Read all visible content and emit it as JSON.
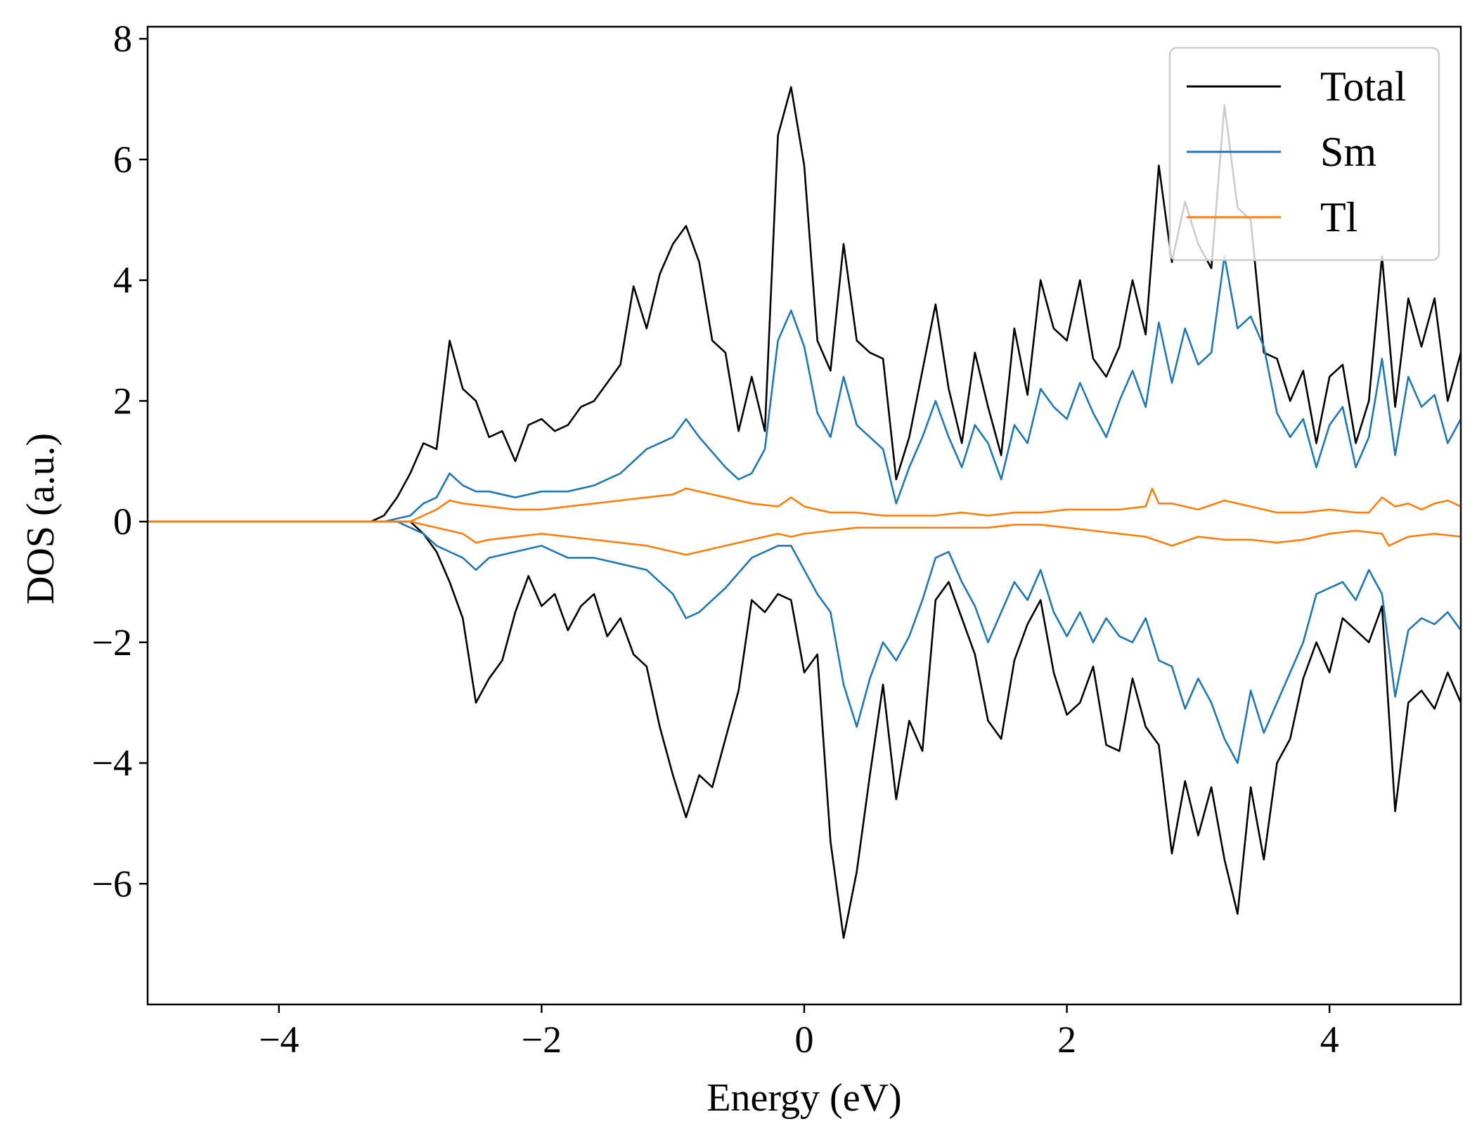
{
  "chart_data": {
    "type": "line",
    "title": "",
    "xlabel": "Energy (eV)",
    "ylabel": "DOS (a.u.)",
    "xlim": [
      -5,
      5
    ],
    "ylim": [
      -8,
      8.2
    ],
    "xticks": [
      -4,
      -2,
      0,
      2,
      4
    ],
    "yticks": [
      -6,
      -4,
      -2,
      0,
      2,
      4,
      6,
      8
    ],
    "xtick_labels": [
      "−4",
      "−2",
      "0",
      "2",
      "4"
    ],
    "ytick_labels": [
      "−6",
      "−4",
      "−2",
      "0",
      "2",
      "4",
      "6",
      "8"
    ],
    "grid": false,
    "legend": {
      "position": "top-right"
    },
    "series": [
      {
        "name": "Total",
        "color": "#000000",
        "component": "spin-up",
        "x": [
          -5.0,
          -3.3,
          -3.2,
          -3.1,
          -3.0,
          -2.9,
          -2.8,
          -2.7,
          -2.6,
          -2.5,
          -2.4,
          -2.3,
          -2.2,
          -2.1,
          -2.0,
          -1.9,
          -1.8,
          -1.7,
          -1.6,
          -1.5,
          -1.4,
          -1.3,
          -1.2,
          -1.1,
          -1.0,
          -0.9,
          -0.8,
          -0.7,
          -0.6,
          -0.5,
          -0.4,
          -0.3,
          -0.2,
          -0.1,
          0.0,
          0.1,
          0.2,
          0.3,
          0.4,
          0.5,
          0.6,
          0.7,
          0.8,
          0.9,
          1.0,
          1.1,
          1.2,
          1.3,
          1.4,
          1.5,
          1.6,
          1.7,
          1.8,
          1.9,
          2.0,
          2.1,
          2.2,
          2.3,
          2.4,
          2.5,
          2.6,
          2.7,
          2.8,
          2.9,
          3.0,
          3.1,
          3.2,
          3.3,
          3.4,
          3.5,
          3.6,
          3.7,
          3.8,
          3.9,
          4.0,
          4.1,
          4.2,
          4.3,
          4.4,
          4.5,
          4.6,
          4.7,
          4.8,
          4.9,
          5.0
        ],
        "y": [
          0.0,
          0.0,
          0.1,
          0.4,
          0.8,
          1.3,
          1.2,
          3.0,
          2.2,
          2.0,
          1.4,
          1.5,
          1.0,
          1.6,
          1.7,
          1.5,
          1.6,
          1.9,
          2.0,
          2.3,
          2.6,
          3.9,
          3.2,
          4.1,
          4.6,
          4.9,
          4.3,
          3.0,
          2.8,
          1.5,
          2.4,
          1.5,
          6.4,
          7.2,
          5.9,
          3.0,
          2.5,
          4.6,
          3.0,
          2.8,
          2.7,
          0.7,
          1.4,
          2.5,
          3.6,
          2.2,
          1.3,
          2.8,
          1.9,
          1.1,
          3.2,
          2.1,
          4.0,
          3.2,
          3.0,
          4.0,
          2.7,
          2.4,
          2.9,
          4.0,
          3.1,
          5.9,
          4.3,
          5.3,
          4.6,
          4.2,
          6.9,
          5.2,
          5.0,
          2.8,
          2.7,
          2.0,
          2.5,
          1.3,
          2.4,
          2.6,
          1.3,
          2.0,
          4.4,
          1.9,
          3.7,
          2.9,
          3.7,
          2.0,
          2.8
        ]
      },
      {
        "name": "",
        "color": "#000000",
        "component": "spin-down",
        "x": [
          -5.0,
          -3.3,
          -3.2,
          -3.1,
          -3.0,
          -2.9,
          -2.8,
          -2.7,
          -2.6,
          -2.5,
          -2.4,
          -2.3,
          -2.2,
          -2.1,
          -2.0,
          -1.9,
          -1.8,
          -1.7,
          -1.6,
          -1.5,
          -1.4,
          -1.3,
          -1.2,
          -1.1,
          -1.0,
          -0.9,
          -0.8,
          -0.7,
          -0.6,
          -0.5,
          -0.4,
          -0.3,
          -0.2,
          -0.1,
          0.0,
          0.1,
          0.2,
          0.3,
          0.4,
          0.5,
          0.6,
          0.7,
          0.8,
          0.9,
          1.0,
          1.1,
          1.2,
          1.3,
          1.4,
          1.5,
          1.6,
          1.7,
          1.8,
          1.9,
          2.0,
          2.1,
          2.2,
          2.3,
          2.4,
          2.5,
          2.6,
          2.7,
          2.8,
          2.9,
          3.0,
          3.1,
          3.2,
          3.3,
          3.4,
          3.5,
          3.6,
          3.7,
          3.8,
          3.9,
          4.0,
          4.1,
          4.2,
          4.3,
          4.4,
          4.5,
          4.6,
          4.7,
          4.8,
          4.9,
          5.0
        ],
        "y": [
          0.0,
          0.0,
          0.0,
          0.0,
          0.0,
          -0.2,
          -0.5,
          -1.0,
          -1.6,
          -3.0,
          -2.6,
          -2.3,
          -1.5,
          -0.9,
          -1.4,
          -1.2,
          -1.8,
          -1.4,
          -1.2,
          -1.9,
          -1.6,
          -2.2,
          -2.4,
          -3.4,
          -4.2,
          -4.9,
          -4.2,
          -4.4,
          -3.6,
          -2.8,
          -1.3,
          -1.5,
          -1.2,
          -1.3,
          -2.5,
          -2.2,
          -5.3,
          -6.9,
          -5.8,
          -4.2,
          -2.7,
          -4.6,
          -3.3,
          -3.8,
          -1.3,
          -1.0,
          -1.6,
          -2.2,
          -3.3,
          -3.6,
          -2.3,
          -1.7,
          -1.3,
          -2.5,
          -3.2,
          -3.0,
          -2.4,
          -3.7,
          -3.8,
          -2.6,
          -3.4,
          -3.7,
          -5.5,
          -4.3,
          -5.2,
          -4.4,
          -5.6,
          -6.5,
          -4.4,
          -5.6,
          -4.0,
          -3.6,
          -2.6,
          -2.0,
          -2.5,
          -1.6,
          -1.8,
          -2.0,
          -1.4,
          -4.8,
          -3.0,
          -2.8,
          -3.1,
          -2.5,
          -3.0
        ]
      },
      {
        "name": "Sm",
        "color": "#1f77b4",
        "component": "spin-up",
        "x": [
          -5.0,
          -3.2,
          -3.0,
          -2.9,
          -2.8,
          -2.7,
          -2.6,
          -2.5,
          -2.4,
          -2.2,
          -2.0,
          -1.8,
          -1.6,
          -1.4,
          -1.2,
          -1.0,
          -0.9,
          -0.8,
          -0.6,
          -0.5,
          -0.4,
          -0.3,
          -0.2,
          -0.1,
          0.0,
          0.1,
          0.2,
          0.3,
          0.4,
          0.5,
          0.6,
          0.7,
          0.8,
          0.9,
          1.0,
          1.1,
          1.2,
          1.3,
          1.4,
          1.5,
          1.6,
          1.7,
          1.8,
          1.9,
          2.0,
          2.1,
          2.2,
          2.3,
          2.4,
          2.5,
          2.6,
          2.7,
          2.8,
          2.9,
          3.0,
          3.1,
          3.2,
          3.3,
          3.4,
          3.5,
          3.6,
          3.7,
          3.8,
          3.9,
          4.0,
          4.1,
          4.2,
          4.3,
          4.4,
          4.5,
          4.6,
          4.7,
          4.8,
          4.9,
          5.0
        ],
        "y": [
          0.0,
          0.0,
          0.1,
          0.3,
          0.4,
          0.8,
          0.6,
          0.5,
          0.5,
          0.4,
          0.5,
          0.5,
          0.6,
          0.8,
          1.2,
          1.4,
          1.7,
          1.4,
          0.9,
          0.7,
          0.8,
          1.2,
          3.0,
          3.5,
          2.9,
          1.8,
          1.4,
          2.4,
          1.6,
          1.4,
          1.2,
          0.3,
          0.9,
          1.4,
          2.0,
          1.4,
          0.9,
          1.6,
          1.3,
          0.7,
          1.6,
          1.3,
          2.2,
          1.9,
          1.7,
          2.3,
          1.8,
          1.4,
          2.0,
          2.5,
          1.9,
          3.3,
          2.3,
          3.2,
          2.6,
          2.8,
          4.4,
          3.2,
          3.4,
          2.9,
          1.8,
          1.4,
          1.7,
          0.9,
          1.6,
          1.9,
          0.9,
          1.4,
          2.7,
          1.1,
          2.4,
          1.9,
          2.1,
          1.3,
          1.7
        ]
      },
      {
        "name": "",
        "color": "#1f77b4",
        "component": "spin-down",
        "x": [
          -5.0,
          -3.1,
          -3.0,
          -2.9,
          -2.8,
          -2.7,
          -2.6,
          -2.5,
          -2.4,
          -2.2,
          -2.0,
          -1.8,
          -1.6,
          -1.4,
          -1.2,
          -1.0,
          -0.9,
          -0.8,
          -0.6,
          -0.4,
          -0.3,
          -0.2,
          -0.1,
          0.0,
          0.1,
          0.2,
          0.3,
          0.4,
          0.5,
          0.6,
          0.7,
          0.8,
          0.9,
          1.0,
          1.1,
          1.2,
          1.3,
          1.4,
          1.5,
          1.6,
          1.7,
          1.8,
          1.9,
          2.0,
          2.1,
          2.2,
          2.3,
          2.4,
          2.5,
          2.6,
          2.7,
          2.8,
          2.9,
          3.0,
          3.1,
          3.2,
          3.3,
          3.4,
          3.5,
          3.6,
          3.7,
          3.8,
          3.9,
          4.0,
          4.1,
          4.2,
          4.3,
          4.4,
          4.5,
          4.6,
          4.7,
          4.8,
          4.9,
          5.0
        ],
        "y": [
          0.0,
          0.0,
          -0.1,
          -0.2,
          -0.4,
          -0.5,
          -0.6,
          -0.8,
          -0.6,
          -0.5,
          -0.4,
          -0.6,
          -0.6,
          -0.7,
          -0.8,
          -1.2,
          -1.6,
          -1.5,
          -1.1,
          -0.6,
          -0.5,
          -0.4,
          -0.4,
          -0.8,
          -1.2,
          -1.5,
          -2.7,
          -3.4,
          -2.6,
          -2.0,
          -2.3,
          -1.9,
          -1.3,
          -0.6,
          -0.5,
          -1.0,
          -1.4,
          -2.0,
          -1.5,
          -1.0,
          -1.3,
          -0.8,
          -1.5,
          -1.9,
          -1.5,
          -2.0,
          -1.6,
          -1.9,
          -2.0,
          -1.6,
          -2.3,
          -2.4,
          -3.1,
          -2.6,
          -3.0,
          -3.6,
          -4.0,
          -2.8,
          -3.5,
          -3.0,
          -2.5,
          -2.0,
          -1.2,
          -1.1,
          -1.0,
          -1.3,
          -0.8,
          -1.2,
          -2.9,
          -1.8,
          -1.6,
          -1.7,
          -1.5,
          -1.8
        ]
      },
      {
        "name": "Tl",
        "color": "#ff7f0e",
        "component": "spin-up",
        "x": [
          -5.0,
          -3.0,
          -2.9,
          -2.8,
          -2.7,
          -2.6,
          -2.4,
          -2.2,
          -2.0,
          -1.8,
          -1.6,
          -1.4,
          -1.2,
          -1.0,
          -0.9,
          -0.8,
          -0.6,
          -0.4,
          -0.2,
          -0.1,
          0.0,
          0.2,
          0.4,
          0.6,
          0.8,
          1.0,
          1.2,
          1.4,
          1.6,
          1.8,
          2.0,
          2.2,
          2.4,
          2.6,
          2.65,
          2.7,
          2.8,
          3.0,
          3.2,
          3.4,
          3.6,
          3.8,
          4.0,
          4.2,
          4.3,
          4.4,
          4.5,
          4.6,
          4.7,
          4.8,
          4.9,
          5.0
        ],
        "y": [
          0.0,
          0.0,
          0.1,
          0.2,
          0.35,
          0.3,
          0.25,
          0.2,
          0.2,
          0.25,
          0.3,
          0.35,
          0.4,
          0.45,
          0.55,
          0.5,
          0.4,
          0.3,
          0.25,
          0.4,
          0.25,
          0.15,
          0.15,
          0.1,
          0.1,
          0.1,
          0.15,
          0.1,
          0.15,
          0.15,
          0.2,
          0.2,
          0.2,
          0.25,
          0.55,
          0.3,
          0.3,
          0.2,
          0.35,
          0.25,
          0.15,
          0.15,
          0.2,
          0.15,
          0.15,
          0.4,
          0.25,
          0.3,
          0.2,
          0.3,
          0.35,
          0.25
        ]
      },
      {
        "name": "",
        "color": "#ff7f0e",
        "component": "spin-down",
        "x": [
          -5.0,
          -3.1,
          -3.0,
          -2.9,
          -2.8,
          -2.7,
          -2.6,
          -2.5,
          -2.4,
          -2.2,
          -2.0,
          -1.8,
          -1.6,
          -1.4,
          -1.2,
          -1.0,
          -0.9,
          -0.8,
          -0.6,
          -0.4,
          -0.2,
          -0.1,
          0.0,
          0.2,
          0.4,
          0.6,
          0.8,
          1.0,
          1.2,
          1.4,
          1.6,
          1.8,
          2.0,
          2.2,
          2.4,
          2.6,
          2.8,
          3.0,
          3.2,
          3.4,
          3.6,
          3.8,
          4.0,
          4.2,
          4.4,
          4.45,
          4.6,
          4.8,
          5.0
        ],
        "y": [
          0.0,
          0.0,
          0.0,
          -0.05,
          -0.1,
          -0.15,
          -0.2,
          -0.35,
          -0.3,
          -0.25,
          -0.2,
          -0.25,
          -0.3,
          -0.35,
          -0.4,
          -0.5,
          -0.55,
          -0.5,
          -0.4,
          -0.3,
          -0.2,
          -0.25,
          -0.2,
          -0.15,
          -0.1,
          -0.1,
          -0.1,
          -0.1,
          -0.1,
          -0.1,
          -0.05,
          -0.05,
          -0.1,
          -0.15,
          -0.2,
          -0.25,
          -0.4,
          -0.25,
          -0.3,
          -0.3,
          -0.35,
          -0.3,
          -0.2,
          -0.15,
          -0.2,
          -0.4,
          -0.25,
          -0.2,
          -0.25
        ]
      }
    ]
  }
}
